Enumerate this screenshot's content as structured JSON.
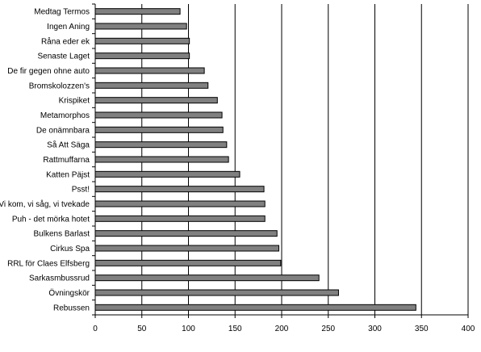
{
  "chart_data": {
    "type": "bar",
    "orientation": "horizontal",
    "categories": [
      "Medtag Termos",
      "Ingen Aning",
      "Råna eder ek",
      "Senaste Laget",
      "De fir gegen ohne auto",
      "Bromskolozzen's",
      "Krispiket",
      "Metamorphos",
      "De onämnbara",
      "Så Att Säga",
      "Rattmuffarna",
      "Katten Päjst",
      "Psst!",
      "Vi kom, vi såg, vi tvekade",
      "Puh - det mörka hotet",
      "Bulkens Barlast",
      "Cirkus Spa",
      "RRL för Claes Elfsberg",
      "Sarkasmbussrud",
      "Övningskör",
      "Rebussen"
    ],
    "values": [
      91,
      98,
      101,
      101,
      117,
      121,
      131,
      136,
      137,
      141,
      143,
      155,
      181,
      182,
      182,
      195,
      197,
      199,
      240,
      261,
      344
    ],
    "xlim": [
      0,
      400
    ],
    "xticks": [
      "0",
      "50",
      "100",
      "150",
      "200",
      "250",
      "300",
      "350",
      "400"
    ],
    "grid": "vertical",
    "bar_color": "#808080",
    "title": "",
    "xlabel": "",
    "ylabel": ""
  }
}
